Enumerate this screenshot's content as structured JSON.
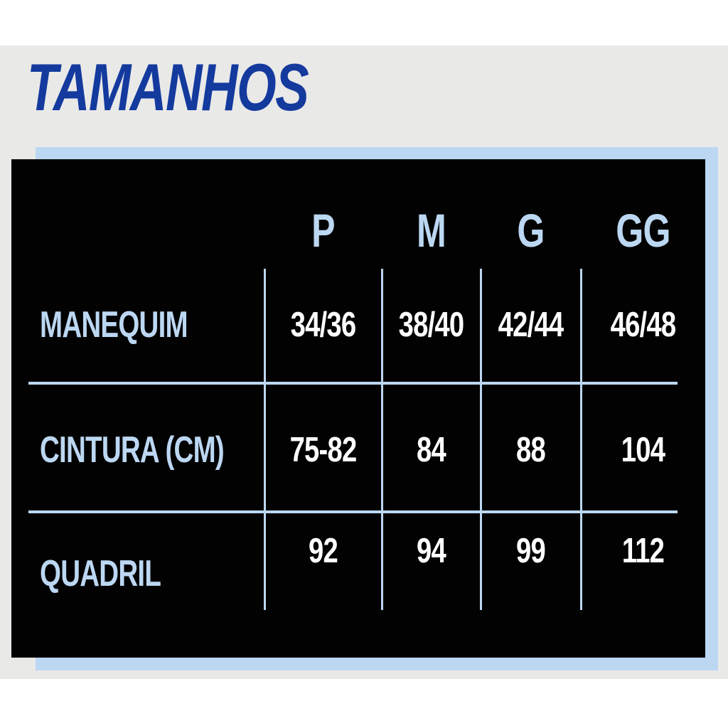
{
  "title": "TAMANHOS",
  "colors": {
    "title_blue": "#143a9e",
    "light_blue": "#bcd7f2",
    "card_black": "#020202",
    "background_gray": "#e9e9e8",
    "value_white": "#ffffff"
  },
  "chart_data": {
    "type": "table",
    "title": "TAMANHOS",
    "columns": [
      "P",
      "M",
      "G",
      "GG"
    ],
    "rows": [
      {
        "label": "MANEQUIM",
        "values": [
          "34/36",
          "38/40",
          "42/44",
          "46/48"
        ]
      },
      {
        "label": "CINTURA (CM)",
        "values": [
          "75-82",
          "84",
          "88",
          "104"
        ]
      },
      {
        "label": "QUADRIL",
        "values": [
          "92",
          "94",
          "99",
          "112"
        ]
      }
    ],
    "layout": {
      "legend": "none",
      "grid": "light-blue separator lines on black card",
      "notes": "size chart card with light blue backing panel offset behind black panel"
    }
  }
}
